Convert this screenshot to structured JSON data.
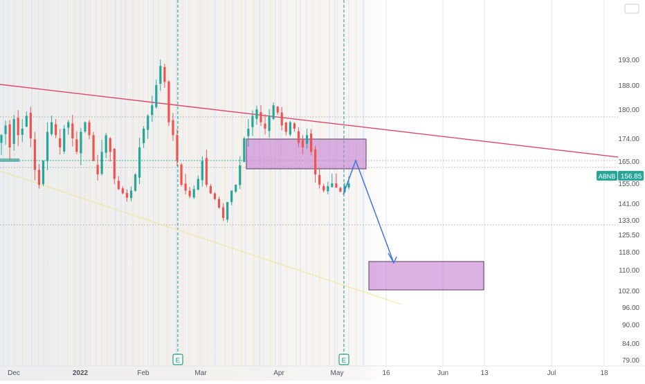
{
  "chart_data": {
    "type": "candlestick",
    "symbol": "ABNB",
    "last_price": "156.85",
    "y_ticks": [
      "193.00",
      "188.00",
      "180.00",
      "174.00",
      "165.00",
      "155.00",
      "141.00",
      "133.00",
      "125.50",
      "118.00",
      "110.00",
      "102.00",
      "96.00",
      "90.00",
      "84.00",
      "79.00"
    ],
    "x_ticks": [
      {
        "label": "Dec",
        "bold": false
      },
      {
        "label": "2022",
        "bold": true
      },
      {
        "label": "Feb",
        "bold": false
      },
      {
        "label": "Mar",
        "bold": false
      },
      {
        "label": "Apr",
        "bold": false
      },
      {
        "label": "May",
        "bold": false
      },
      {
        "label": "16",
        "bold": false
      },
      {
        "label": "Jun",
        "bold": false
      },
      {
        "label": "13",
        "bold": false
      },
      {
        "label": "Jul",
        "bold": false
      },
      {
        "label": "18",
        "bold": false
      }
    ],
    "ohlc_sample_close": [
      166,
      169,
      163,
      171,
      166,
      168,
      172,
      165,
      158,
      154,
      160,
      167,
      170,
      166,
      163,
      168,
      170,
      165,
      162,
      167,
      170,
      166,
      160,
      157,
      162,
      166,
      162,
      156,
      151,
      148,
      145,
      150,
      157,
      163,
      168,
      172,
      175,
      180,
      186,
      181,
      170,
      166,
      160,
      154,
      150,
      146,
      151,
      156,
      160,
      154,
      148,
      144,
      139,
      134,
      142,
      150,
      154,
      159,
      165,
      168,
      172,
      174,
      170,
      168,
      172,
      175,
      173,
      169,
      167,
      170,
      168,
      164,
      163,
      166,
      162,
      157,
      154,
      150,
      153,
      155,
      152,
      149,
      153,
      155
    ],
    "earnings_markers": [
      "E",
      "E"
    ],
    "colors": {
      "up": "#26a69a",
      "down": "#ef5350",
      "trendline_upper": "#e0446b",
      "trendline_lower": "#f2e58c",
      "zone_fill": "#c57fd0",
      "zone_stroke": "#5a3c61",
      "projection_arrow": "#3d74d9",
      "earnings": "#1c9f7b",
      "price_tag": "#26a69a"
    }
  }
}
